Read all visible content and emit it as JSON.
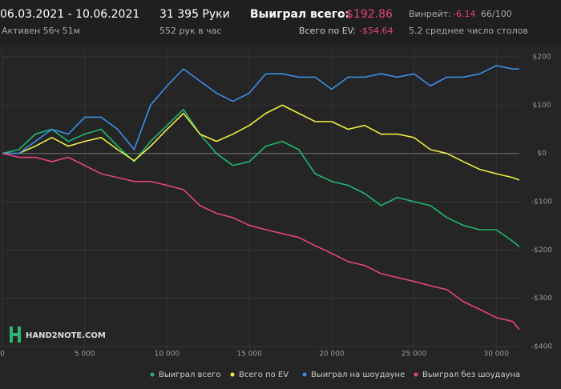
{
  "header": {
    "date_range": "06.03.2021 - 10.06.2021",
    "active": "Активен 56ч 51м",
    "hands": "31 395 Руки",
    "hands_per_hour": "552 рук в час",
    "won_label": "Выиграл всего:",
    "won_value": "-$192.86",
    "ev_label": "Всего по EV:",
    "ev_value": "-$54.64",
    "winrate_label": "Винрейт:",
    "winrate_value": "-6.14",
    "winrate_unit": "66/100",
    "tables": "5.2 среднее число столов"
  },
  "logo": "HAND2NOTE.COM",
  "chart_data": {
    "type": "line",
    "legend": "bottom",
    "grid": true,
    "x": [
      0,
      1000,
      2000,
      3000,
      4000,
      5000,
      6000,
      7000,
      8000,
      9000,
      10000,
      11000,
      12000,
      13000,
      14000,
      15000,
      16000,
      17000,
      18000,
      19000,
      20000,
      21000,
      22000,
      23000,
      24000,
      25000,
      26000,
      27000,
      28000,
      29000,
      30000,
      31000,
      31395
    ],
    "xlim": [
      0,
      31400
    ],
    "xticks": [
      0,
      {
        "value": 5000,
        "label": "5 000"
      },
      {
        "value": 10000,
        "label": "10 000"
      },
      {
        "value": 15000,
        "label": "15 000"
      },
      {
        "value": 20000,
        "label": "20 000"
      },
      {
        "value": 25000,
        "label": "25 000"
      },
      {
        "value": 30000,
        "label": "30 000"
      }
    ],
    "ylim": [
      -405,
      215
    ],
    "yticks": [
      {
        "value": 200,
        "label": "$200"
      },
      {
        "value": 100,
        "label": "$100"
      },
      {
        "value": 0,
        "label": "$0"
      },
      {
        "value": -100,
        "label": "-$100"
      },
      {
        "value": -200,
        "label": "-$200"
      },
      {
        "value": -300,
        "label": "-$300"
      },
      {
        "value": -400,
        "label": "-$400"
      }
    ],
    "series": [
      {
        "name": "Выиграл всего",
        "color": "#1fb870",
        "values": [
          0,
          8,
          40,
          50,
          25,
          40,
          50,
          15,
          -17,
          25,
          58,
          91,
          40,
          0,
          -25,
          -17,
          15,
          25,
          8,
          -42,
          -58,
          -66,
          -83,
          -108,
          -91,
          -100,
          -108,
          -133,
          -149,
          -158,
          -158,
          -182,
          -193
        ]
      },
      {
        "name": "Всего по EV",
        "color": "#f0ec42",
        "values": [
          0,
          0,
          15,
          33,
          15,
          25,
          33,
          8,
          -15,
          15,
          50,
          83,
          40,
          25,
          40,
          58,
          83,
          100,
          83,
          66,
          66,
          50,
          58,
          40,
          40,
          33,
          8,
          0,
          -17,
          -33,
          -42,
          -50,
          -55
        ]
      },
      {
        "name": "Выиграл на шоудауне",
        "color": "#3d8fe8",
        "values": [
          0,
          0,
          25,
          50,
          40,
          75,
          75,
          50,
          8,
          100,
          140,
          175,
          150,
          125,
          108,
          125,
          165,
          165,
          158,
          158,
          133,
          158,
          158,
          165,
          158,
          165,
          140,
          158,
          158,
          165,
          182,
          175,
          175
        ]
      },
      {
        "name": "Выиграл без шоудауна",
        "color": "#e2457d",
        "values": [
          0,
          -8,
          -8,
          -17,
          -8,
          -25,
          -42,
          -50,
          -58,
          -58,
          -66,
          -75,
          -108,
          -124,
          -133,
          -149,
          -158,
          -166,
          -174,
          -191,
          -207,
          -224,
          -232,
          -249,
          -257,
          -265,
          -274,
          -282,
          -307,
          -323,
          -340,
          -348,
          -365
        ]
      }
    ]
  }
}
